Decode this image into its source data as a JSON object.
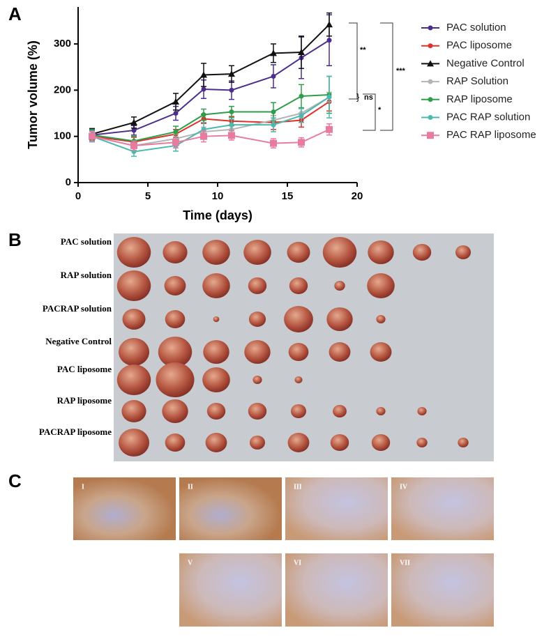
{
  "chart_data": {
    "type": "line",
    "panel_label": "A",
    "xlabel": "Time (days)",
    "ylabel": "Tumor volume (%)",
    "x": [
      1,
      4,
      7,
      9,
      11,
      14,
      16,
      18
    ],
    "xlim": [
      0,
      20
    ],
    "xticks": [
      0,
      5,
      10,
      15,
      20
    ],
    "ylim": [
      0,
      380
    ],
    "yticks": [
      0,
      100,
      200,
      300
    ],
    "series": [
      {
        "name": "PAC solution",
        "color": "#4b2e8c",
        "marker": "circle",
        "values": [
          103,
          113,
          150,
          202,
          200,
          230,
          270,
          308
        ],
        "errors": [
          10,
          10,
          15,
          20,
          20,
          25,
          45,
          55
        ]
      },
      {
        "name": "PAC liposome",
        "color": "#e0302a",
        "marker": "circle",
        "values": [
          100,
          88,
          105,
          138,
          133,
          130,
          135,
          175
        ],
        "errors": [
          10,
          10,
          10,
          10,
          10,
          15,
          15,
          20
        ]
      },
      {
        "name": "Negative Control",
        "color": "#111111",
        "marker": "triangle",
        "values": [
          105,
          130,
          175,
          233,
          235,
          280,
          282,
          342
        ],
        "errors": [
          12,
          12,
          18,
          25,
          18,
          20,
          35,
          25
        ]
      },
      {
        "name": "RAP Solution",
        "color": "#b4b4b4",
        "marker": "circle",
        "values": [
          100,
          80,
          95,
          110,
          115,
          135,
          150,
          185
        ],
        "errors": [
          10,
          10,
          10,
          10,
          10,
          10,
          10,
          10
        ]
      },
      {
        "name": "RAP liposome",
        "color": "#2e9e4a",
        "marker": "circle",
        "values": [
          103,
          90,
          110,
          147,
          153,
          153,
          187,
          190
        ],
        "errors": [
          12,
          10,
          12,
          12,
          12,
          20,
          25,
          40
        ]
      },
      {
        "name": "PAC RAP solution",
        "color": "#4cb8b0",
        "marker": "circle",
        "values": [
          100,
          67,
          80,
          115,
          125,
          125,
          145,
          185
        ],
        "errors": [
          12,
          10,
          12,
          15,
          12,
          15,
          15,
          45
        ]
      },
      {
        "name": "PAC RAP liposome",
        "color": "#e87ca0",
        "marker": "square",
        "values": [
          100,
          80,
          87,
          100,
          102,
          85,
          87,
          115
        ],
        "errors": [
          10,
          10,
          12,
          12,
          10,
          10,
          10,
          12
        ]
      }
    ],
    "annotations": [
      "**",
      "***",
      "ns",
      "*"
    ]
  },
  "panel_b": {
    "label": "B",
    "rows": [
      "PAC solution",
      "RAP solution",
      "PACRAP solution",
      "Negative Control",
      "PAC liposome",
      "RAP liposome",
      "PACRAP liposome"
    ]
  },
  "panel_c": {
    "label": "C",
    "images": [
      "I",
      "II",
      "III",
      "IV",
      "V",
      "VI",
      "VII"
    ]
  }
}
